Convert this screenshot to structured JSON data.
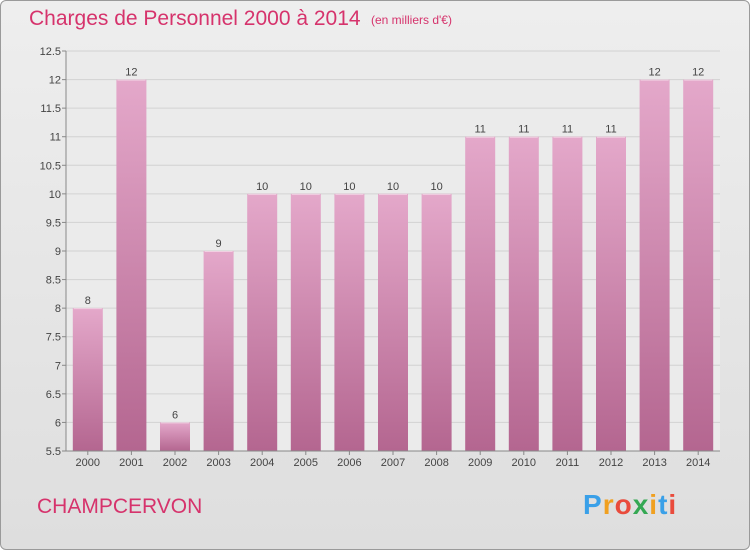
{
  "header": {
    "title": "Charges de Personnel 2000 à 2014",
    "subtitle": "(en milliers d'€)"
  },
  "footer": {
    "commune": "CHAMPCERVON",
    "brand": {
      "letters": [
        "P",
        "r",
        "o",
        "x",
        "i",
        "t",
        "i"
      ],
      "colors": [
        "#3aa0e8",
        "#f0a020",
        "#e94b3c",
        "#34a853",
        "#f0a020",
        "#3aa0e8",
        "#e94b3c"
      ]
    }
  },
  "chart_data": {
    "type": "bar",
    "categories": [
      "2000",
      "2001",
      "2002",
      "2003",
      "2004",
      "2005",
      "2006",
      "2007",
      "2008",
      "2009",
      "2010",
      "2011",
      "2012",
      "2013",
      "2014"
    ],
    "values": [
      8,
      12,
      6,
      9,
      10,
      10,
      10,
      10,
      10,
      11,
      11,
      11,
      11,
      12,
      12
    ],
    "data_labels": [
      "8",
      "12",
      "6",
      "9",
      "10",
      "10",
      "10",
      "10",
      "10",
      "11",
      "11",
      "11",
      "11",
      "12",
      "12"
    ],
    "ylim": [
      5.5,
      12.5
    ],
    "yticks": [
      5.5,
      6,
      6.5,
      7,
      7.5,
      8,
      8.5,
      9,
      9.5,
      10,
      10.5,
      11,
      11.5,
      12,
      12.5
    ],
    "ytick_labels": [
      "5.5",
      "6",
      "6.5",
      "7",
      "7.5",
      "8",
      "8.5",
      "9",
      "9.5",
      "10",
      "10.5",
      "11",
      "11.5",
      "12",
      "12.5"
    ],
    "grid": true,
    "bar_color": "#cc7ba6"
  }
}
